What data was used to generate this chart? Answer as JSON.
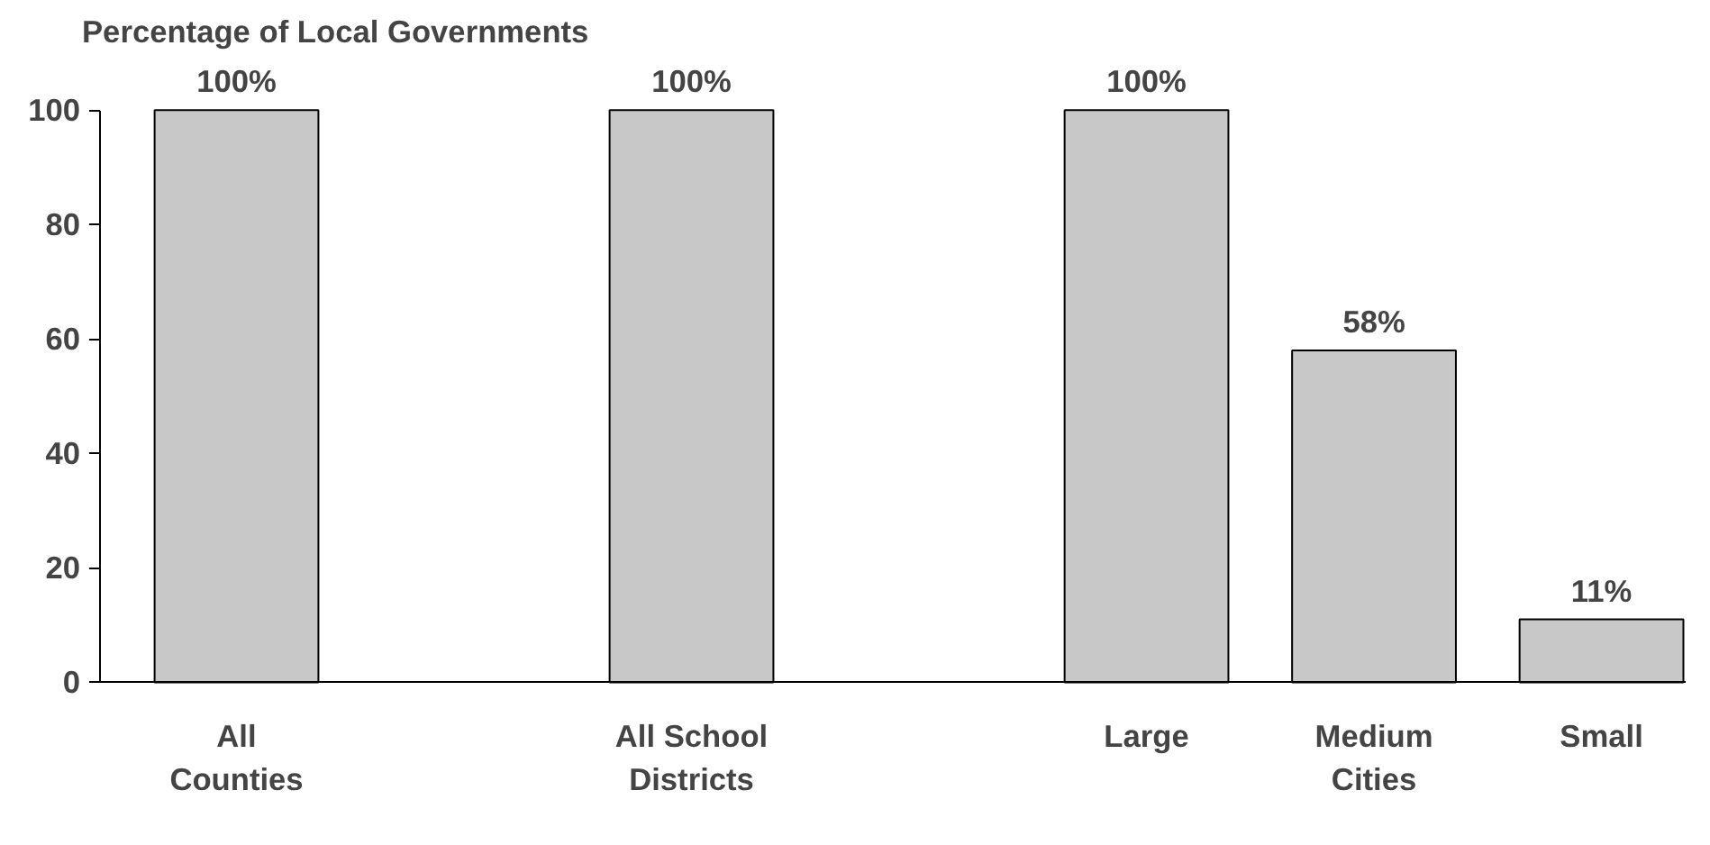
{
  "chart_data": {
    "type": "bar",
    "title": "Percentage of Local Governments",
    "categories": [
      "All\nCounties",
      null,
      "All School\nDistricts",
      null,
      "Large",
      "Medium",
      "Small"
    ],
    "values": [
      100,
      null,
      100,
      null,
      100,
      58,
      11
    ],
    "value_labels": [
      "100%",
      null,
      "100%",
      null,
      "100%",
      "58%",
      "11%"
    ],
    "color": "#c8c8c8",
    "ylim": [
      0,
      100
    ],
    "yticks": [
      0,
      20,
      40,
      60,
      80,
      100
    ],
    "grid": false,
    "annotations": [
      "Cities"
    ]
  }
}
